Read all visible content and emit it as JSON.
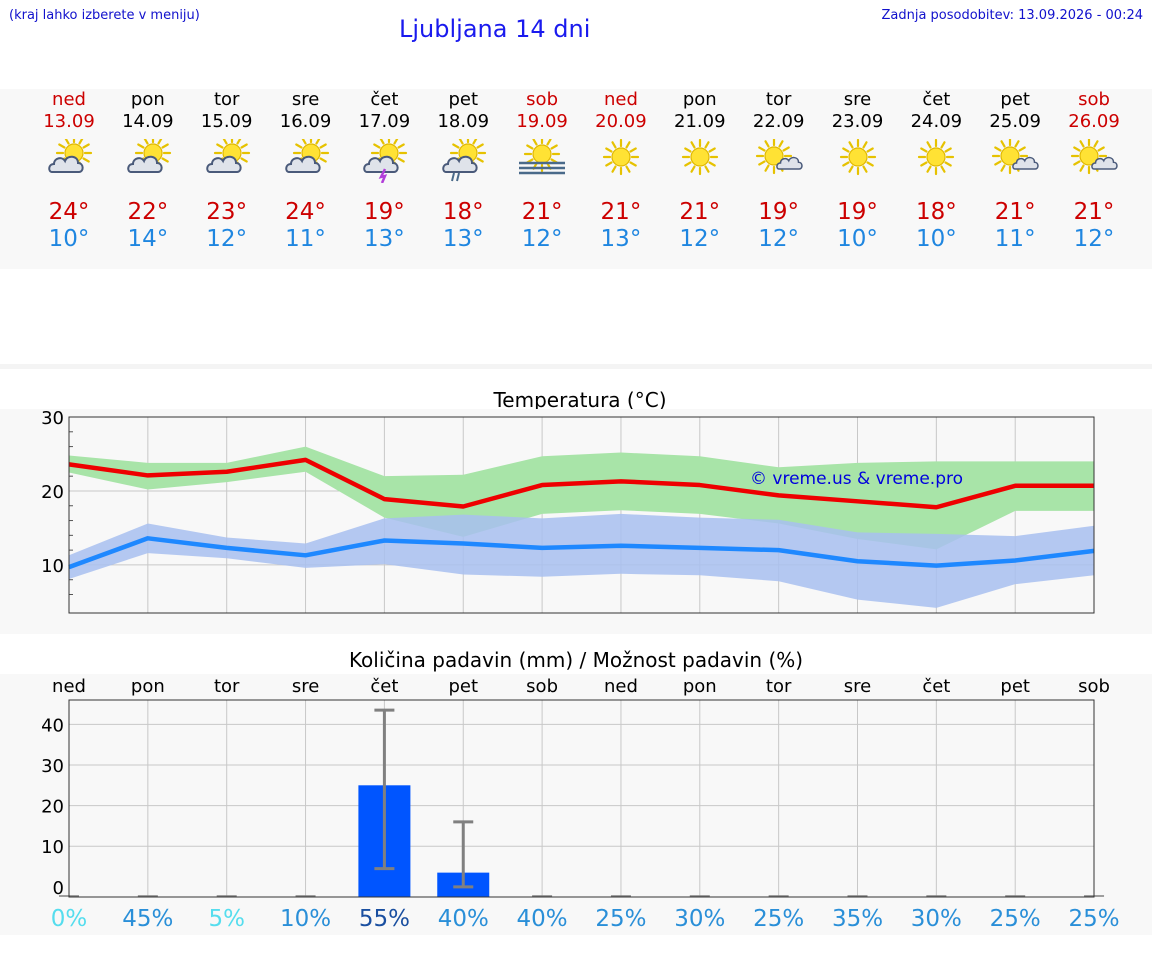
{
  "header": {
    "hint": "(kraj lahko izberete v meniju)",
    "title": "Ljubljana 14 dni",
    "updated": "Zadnja posodobitev: 13.09.2026 - 00:24"
  },
  "days": [
    {
      "name": "ned",
      "date": "13.09",
      "weekend": true,
      "icon": "sun-cloud-icon",
      "max": "24°",
      "min": "10°"
    },
    {
      "name": "pon",
      "date": "14.09",
      "weekend": false,
      "icon": "sun-cloud-icon",
      "max": "22°",
      "min": "14°"
    },
    {
      "name": "tor",
      "date": "15.09",
      "weekend": false,
      "icon": "sun-cloud-icon",
      "max": "23°",
      "min": "12°"
    },
    {
      "name": "sre",
      "date": "16.09",
      "weekend": false,
      "icon": "sun-cloud-icon",
      "max": "24°",
      "min": "11°"
    },
    {
      "name": "čet",
      "date": "17.09",
      "weekend": false,
      "icon": "sun-thunderstorm-icon",
      "max": "19°",
      "min": "13°"
    },
    {
      "name": "pet",
      "date": "18.09",
      "weekend": false,
      "icon": "sun-rain-icon",
      "max": "18°",
      "min": "13°"
    },
    {
      "name": "sob",
      "date": "19.09",
      "weekend": true,
      "icon": "sun-fog-icon",
      "max": "21°",
      "min": "12°"
    },
    {
      "name": "ned",
      "date": "20.09",
      "weekend": true,
      "icon": "sun-icon",
      "max": "21°",
      "min": "13°"
    },
    {
      "name": "pon",
      "date": "21.09",
      "weekend": false,
      "icon": "sun-icon",
      "max": "21°",
      "min": "12°"
    },
    {
      "name": "tor",
      "date": "22.09",
      "weekend": false,
      "icon": "sun-small-cloud-icon",
      "max": "19°",
      "min": "12°"
    },
    {
      "name": "sre",
      "date": "23.09",
      "weekend": false,
      "icon": "sun-icon",
      "max": "19°",
      "min": "10°"
    },
    {
      "name": "čet",
      "date": "24.09",
      "weekend": false,
      "icon": "sun-icon",
      "max": "18°",
      "min": "10°"
    },
    {
      "name": "pet",
      "date": "25.09",
      "weekend": false,
      "icon": "sun-small-cloud-icon",
      "max": "21°",
      "min": "11°"
    },
    {
      "name": "sob",
      "date": "26.09",
      "weekend": true,
      "icon": "sun-small-cloud-icon",
      "max": "21°",
      "min": "12°"
    }
  ],
  "colors": {
    "weekend": "#cc0000",
    "max_line": "#ee0000",
    "min_line": "#1e88ff",
    "max_band": "#a8e4a8",
    "min_band": "#a8c0f0",
    "precip_bar": "#0055ff",
    "error_bar": "#808080"
  },
  "chart_data": [
    {
      "type": "line",
      "title": "Temperatura (°C)",
      "watermark": "© vreme.us & vreme.pro",
      "ylim": [
        3.5,
        30
      ],
      "yticks": [
        10,
        20,
        30
      ],
      "categories": [
        "13.09",
        "14.09",
        "15.09",
        "16.09",
        "17.09",
        "18.09",
        "19.09",
        "20.09",
        "21.09",
        "22.09",
        "23.09",
        "24.09",
        "25.09",
        "26.09"
      ],
      "series": [
        {
          "values": [
            23.6,
            22.1,
            22.6,
            24.2,
            18.9,
            17.9,
            20.8,
            21.3,
            20.8,
            19.4,
            18.6,
            17.8,
            20.7,
            20.7
          ],
          "band_low": [
            22.5,
            20.2,
            21.2,
            22.6,
            16.4,
            13.8,
            16.9,
            17.4,
            16.9,
            15.6,
            13.5,
            12.1,
            17.3,
            17.3
          ],
          "band_high": [
            24.8,
            23.8,
            23.8,
            26.0,
            22.0,
            22.2,
            24.7,
            25.2,
            24.7,
            23.2,
            23.8,
            24.0,
            24.0,
            24.0
          ]
        },
        {
          "values": [
            9.7,
            13.6,
            12.3,
            11.3,
            13.3,
            12.9,
            12.3,
            12.6,
            12.3,
            12.0,
            10.5,
            9.9,
            10.6,
            11.9
          ],
          "band_low": [
            8.1,
            11.6,
            10.9,
            9.6,
            10.1,
            8.7,
            8.4,
            8.8,
            8.6,
            7.8,
            5.3,
            4.2,
            7.4,
            8.6
          ],
          "band_high": [
            11.3,
            15.6,
            13.7,
            12.9,
            16.3,
            16.8,
            16.3,
            16.9,
            16.4,
            16.1,
            14.4,
            14.2,
            13.9,
            15.3
          ]
        }
      ]
    },
    {
      "type": "bar",
      "title": "Količina padavin (mm) / Možnost padavin (%)",
      "categories": [
        "ned",
        "pon",
        "tor",
        "sre",
        "čet",
        "pet",
        "sob",
        "ned",
        "pon",
        "tor",
        "sre",
        "čet",
        "pet",
        "sob"
      ],
      "yticks": [
        0,
        10,
        20,
        30,
        40
      ],
      "ylim": [
        -2.5,
        46
      ],
      "values": [
        0,
        0,
        0,
        0,
        25,
        3.5,
        0,
        0,
        0,
        0,
        0,
        0,
        0,
        0
      ],
      "err_low": [
        0,
        0,
        0,
        0,
        4.5,
        0,
        0,
        0,
        0,
        0,
        0,
        0,
        0,
        0
      ],
      "err_high": [
        0,
        0,
        0,
        0,
        43.5,
        16,
        0,
        0,
        0,
        0,
        0,
        0,
        0,
        0
      ],
      "probabilities": [
        "0%",
        "45%",
        "5%",
        "10%",
        "55%",
        "40%",
        "40%",
        "25%",
        "30%",
        "25%",
        "35%",
        "30%",
        "25%",
        "25%"
      ],
      "probability_colors": [
        "#55ddee",
        "#2a8fd8",
        "#55ddee",
        "#2a8fd8",
        "#1a4fa0",
        "#2a8fd8",
        "#2a8fd8",
        "#2a8fd8",
        "#2a8fd8",
        "#2a8fd8",
        "#2a8fd8",
        "#2a8fd8",
        "#2a8fd8",
        "#2a8fd8"
      ]
    }
  ]
}
